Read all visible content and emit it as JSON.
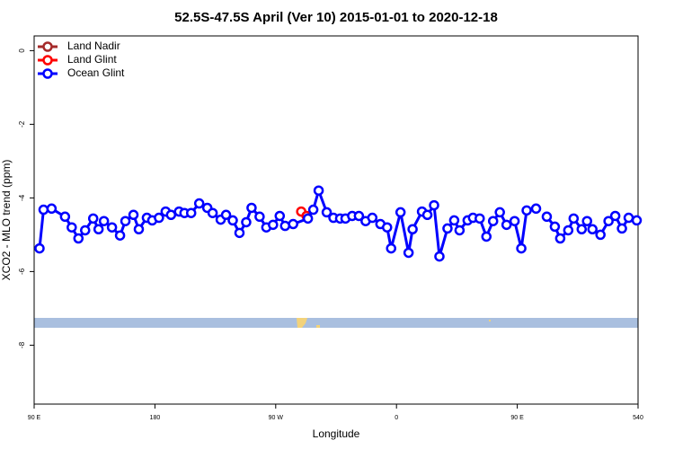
{
  "chart_data": {
    "type": "line",
    "title": "52.5S-47.5S April (Ver 10)   2015-01-01 to 2020-12-18",
    "x_label": "Longitude",
    "y_label": "XCO2 - MLO trend (ppm)",
    "xlim": [
      90,
      540
    ],
    "xticks": [
      {
        "value": 90,
        "label": "90 E"
      },
      180,
      {
        "value": 270,
        "label": "90 W"
      },
      {
        "value": 360,
        "label": "0"
      },
      {
        "value": 450,
        "label": "90 E"
      },
      540
    ],
    "ylim": [
      -9.6,
      0.4
    ],
    "yticks": [
      0,
      -2,
      -4,
      -6,
      -8
    ],
    "legend": "top-left",
    "series": [
      {
        "name": "Land Nadir",
        "color": "#a52a2a",
        "x": [],
        "values": []
      },
      {
        "name": "Land Glint",
        "color": "#ff0000",
        "x": [
          289,
          293
        ],
        "values": [
          -4.37,
          -4.49
        ]
      },
      {
        "name": "Ocean Glint",
        "color": "#0000ff",
        "x": [
          94,
          97,
          103,
          113,
          118,
          123,
          128,
          134,
          138,
          142,
          148,
          154,
          158,
          164,
          168,
          174,
          178,
          183,
          188,
          192,
          198,
          202,
          207,
          213,
          219,
          223,
          229,
          233,
          238,
          243,
          248,
          252,
          258,
          263,
          268,
          273,
          277,
          283,
          294,
          298,
          302,
          308,
          313,
          318,
          322,
          327,
          332,
          337,
          342,
          348,
          353,
          356,
          363,
          369,
          372,
          379,
          383,
          388,
          392,
          398,
          403,
          407,
          413,
          417,
          422,
          427,
          432,
          437,
          442,
          448,
          453,
          457,
          464,
          468,
          472,
          478,
          482,
          488,
          492,
          498,
          502,
          506,
          512,
          518,
          523,
          528,
          533,
          539
        ],
        "values": [
          -5.37,
          -4.32,
          -4.29,
          -4.51,
          -4.8,
          -5.1,
          -4.88,
          -4.56,
          -4.85,
          -4.63,
          -4.8,
          -5.02,
          -4.63,
          -4.46,
          -4.85,
          -4.54,
          -4.61,
          -4.54,
          -4.37,
          -4.46,
          -4.37,
          -4.41,
          -4.41,
          -4.15,
          -4.27,
          -4.41,
          -4.59,
          -4.46,
          -4.61,
          -4.95,
          -4.66,
          -4.27,
          -4.51,
          -4.8,
          -4.73,
          -4.49,
          -4.76,
          -4.71,
          -4.56,
          -4.32,
          -3.8,
          -4.39,
          -4.54,
          -4.56,
          -4.56,
          -4.49,
          -4.49,
          -4.63,
          -4.54,
          -4.71,
          -4.8,
          -5.37,
          -4.39,
          -5.49,
          -4.85,
          -4.37,
          -4.46,
          -4.2,
          -5.59,
          -4.83,
          -4.61,
          -4.88,
          -4.61,
          -4.54,
          -4.56,
          -5.05,
          -4.63,
          -4.39,
          -4.73,
          -4.63,
          -5.37,
          -4.34,
          -4.29,
          null,
          -4.51,
          -4.78,
          -5.1,
          -4.88,
          -4.56,
          -4.85,
          -4.63,
          -4.85,
          -5.0,
          -4.63,
          -4.49,
          -4.83,
          -4.54,
          -4.61
        ]
      }
    ]
  }
}
